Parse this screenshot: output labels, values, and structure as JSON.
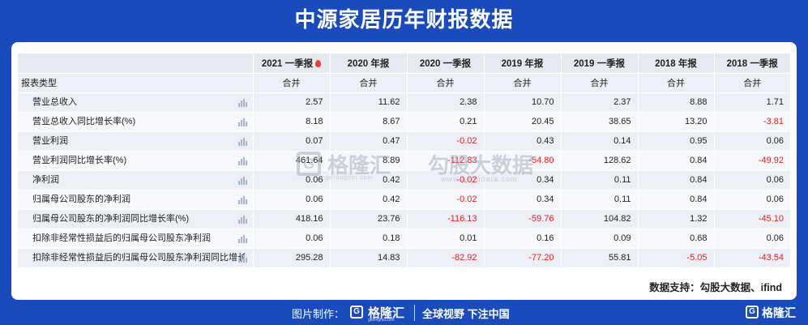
{
  "title": "中源家居历年财报数据",
  "table": {
    "columns": [
      "2021 一季报",
      "2020 年报",
      "2020 一季报",
      "2019 年报",
      "2019 一季报",
      "2018 年报",
      "2018 一季报"
    ],
    "row_header_label": "报表类型",
    "report_type": [
      "合并",
      "合并",
      "合并",
      "合并",
      "合并",
      "合并",
      "合并"
    ],
    "rows": [
      {
        "label": "营业总收入",
        "values": [
          "2.57",
          "11.62",
          "2.38",
          "10.70",
          "2.37",
          "8.88",
          "1.71"
        ]
      },
      {
        "label": "营业总收入同比增长率(%)",
        "values": [
          "8.18",
          "8.67",
          "0.21",
          "20.45",
          "38.65",
          "13.20",
          "-3.81"
        ]
      },
      {
        "label": "营业利润",
        "values": [
          "0.07",
          "0.47",
          "-0.02",
          "0.43",
          "0.14",
          "0.95",
          "0.06"
        ]
      },
      {
        "label": "营业利润同比增长率(%)",
        "values": [
          "461.64",
          "8.89",
          "-112.83",
          "-54.80",
          "128.62",
          "0.84",
          "-49.92"
        ]
      },
      {
        "label": "净利润",
        "values": [
          "0.06",
          "0.42",
          "-0.02",
          "0.34",
          "0.11",
          "0.84",
          "0.06"
        ]
      },
      {
        "label": "归属母公司股东的净利润",
        "values": [
          "0.06",
          "0.42",
          "-0.02",
          "0.34",
          "0.11",
          "0.84",
          "0.06"
        ]
      },
      {
        "label": "归属母公司股东的净利润同比增长率(%)",
        "values": [
          "418.16",
          "23.76",
          "-116.13",
          "-59.76",
          "104.82",
          "1.32",
          "-45.10"
        ]
      },
      {
        "label": "扣除非经常性损益后的归属母公司股东净利润",
        "values": [
          "0.06",
          "0.18",
          "0.01",
          "0.16",
          "0.09",
          "0.68",
          "0.06"
        ]
      },
      {
        "label": "扣除非经常性损益后的归属母公司股东净利润同比增长率",
        "values": [
          "295.28",
          "14.83",
          "-82.92",
          "-77.20",
          "55.81",
          "-5.05",
          "-43.54"
        ]
      }
    ]
  },
  "source": "数据支持：勾股大数据、ifind",
  "watermark": {
    "brand": "格隆汇",
    "brand_url": "gelonghui.com",
    "partner": "勾股大数据",
    "partner_url": "www.gogudata.com"
  },
  "footer": {
    "made_by": "图片制作：",
    "brand": "格隆汇",
    "brand_url": "gelonghui.com",
    "slogan": "全球视野 下注中国",
    "corner_brand": "格隆汇",
    "logo_letter": "G"
  },
  "colors": {
    "background": "#1a4bbd",
    "negative": "#e02020",
    "header_bg": "#e6e9f0"
  },
  "icons": {
    "hot": "flame-icon",
    "row_chart": "bar-chart-icon"
  }
}
